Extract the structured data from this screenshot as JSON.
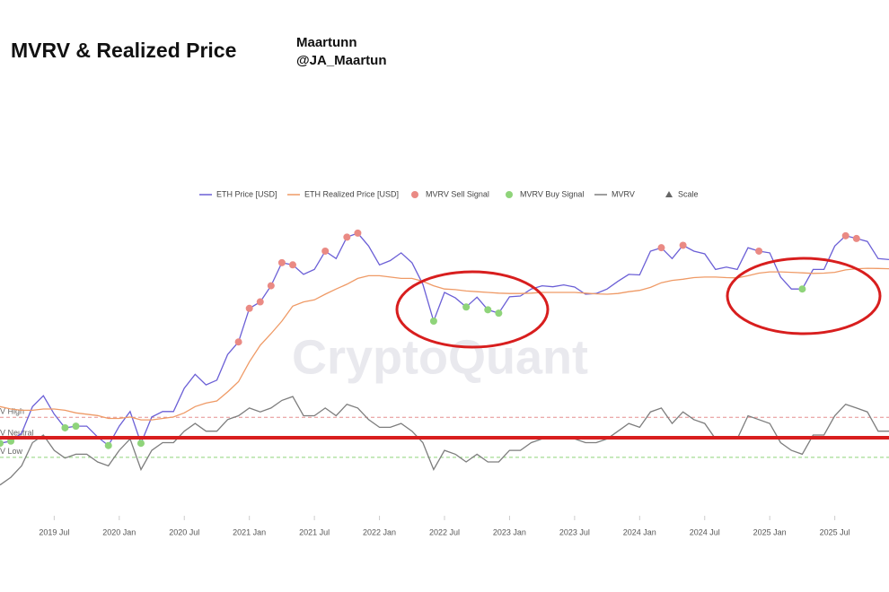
{
  "header": {
    "title": "MVRV & Realized Price",
    "author": "Maartunn",
    "handle": "@JA_Maartun"
  },
  "chart_data": {
    "type": "line",
    "watermark": "CryptoQuant",
    "scale_label": "Scale",
    "x": [
      "2019-02",
      "2019-03",
      "2019-04",
      "2019-05",
      "2019-06",
      "2019-07",
      "2019-08",
      "2019-09",
      "2019-10",
      "2019-11",
      "2019-12",
      "2020-01",
      "2020-02",
      "2020-03",
      "2020-04",
      "2020-05",
      "2020-06",
      "2020-07",
      "2020-08",
      "2020-09",
      "2020-10",
      "2020-11",
      "2020-12",
      "2021-01",
      "2021-02",
      "2021-03",
      "2021-04",
      "2021-05",
      "2021-06",
      "2021-07",
      "2021-08",
      "2021-09",
      "2021-10",
      "2021-11",
      "2021-12",
      "2022-01",
      "2022-02",
      "2022-03",
      "2022-04",
      "2022-05",
      "2022-06",
      "2022-07",
      "2022-08",
      "2022-09",
      "2022-10",
      "2022-11",
      "2022-12",
      "2023-01",
      "2023-02",
      "2023-03",
      "2023-04",
      "2023-05",
      "2023-06",
      "2023-07",
      "2023-08",
      "2023-09",
      "2023-10",
      "2023-11",
      "2023-12",
      "2024-01",
      "2024-02",
      "2024-03",
      "2024-04",
      "2024-05",
      "2024-06",
      "2024-07",
      "2024-08",
      "2024-09",
      "2024-10",
      "2024-11",
      "2024-12",
      "2025-01",
      "2025-02",
      "2025-03",
      "2025-04",
      "2025-05",
      "2025-06",
      "2025-07",
      "2025-08",
      "2025-09",
      "2025-10",
      "2025-11",
      "2025-12"
    ],
    "xlim": [
      "2019-02",
      "2025-12"
    ],
    "xticks": [
      {
        "value": "2019-07",
        "label": "2019 Jul"
      },
      {
        "value": "2020-01",
        "label": "2020 Jan"
      },
      {
        "value": "2020-07",
        "label": "2020 Jul"
      },
      {
        "value": "2021-01",
        "label": "2021 Jan"
      },
      {
        "value": "2021-07",
        "label": "2021 Jul"
      },
      {
        "value": "2022-01",
        "label": "2022 Jan"
      },
      {
        "value": "2022-07",
        "label": "2022 Jul"
      },
      {
        "value": "2023-01",
        "label": "2023 Jan"
      },
      {
        "value": "2023-07",
        "label": "2023 Jul"
      },
      {
        "value": "2024-01",
        "label": "2024 Jan"
      },
      {
        "value": "2024-07",
        "label": "2024 Jul"
      },
      {
        "value": "2025-01",
        "label": "2025 Jan"
      },
      {
        "value": "2025-07",
        "label": "2025 Jul"
      }
    ],
    "ylim": [
      40,
      7000
    ],
    "log_scale": true,
    "y2lim": [
      0,
      4
    ],
    "thresholds": [
      {
        "label": "V High",
        "value": 1.28,
        "color": "#e58f8f",
        "dashed": true
      },
      {
        "label": "V Neutral",
        "value": 1.0,
        "color": "#e8a0a0",
        "dashed": true
      },
      {
        "label": "V Low",
        "value": 0.76,
        "color": "#8fd47a",
        "dashed": true
      }
    ],
    "series": [
      {
        "name": "ETH Price [USD]",
        "color": "#6b5fd6",
        "kind": "line",
        "axis": "y",
        "values": [
          135,
          140,
          160,
          250,
          300,
          220,
          175,
          180,
          180,
          150,
          130,
          180,
          230,
          135,
          210,
          230,
          230,
          340,
          430,
          360,
          390,
          600,
          740,
          1300,
          1450,
          1900,
          2800,
          2700,
          2300,
          2500,
          3400,
          3000,
          4300,
          4600,
          3700,
          2700,
          2900,
          3300,
          2800,
          1950,
          1050,
          1700,
          1550,
          1330,
          1570,
          1270,
          1200,
          1580,
          1600,
          1800,
          1900,
          1870,
          1930,
          1860,
          1650,
          1670,
          1800,
          2050,
          2300,
          2280,
          3400,
          3600,
          3000,
          3750,
          3400,
          3250,
          2500,
          2600,
          2500,
          3600,
          3400,
          3300,
          2200,
          1800,
          1800,
          2500,
          2500,
          3700,
          4400,
          4200,
          4000,
          3000,
          2950
        ]
      },
      {
        "name": "ETH Realized Price [USD]",
        "color": "#ef9a66",
        "kind": "line",
        "axis": "y",
        "values": [
          250,
          240,
          235,
          235,
          240,
          240,
          235,
          225,
          220,
          215,
          205,
          205,
          210,
          200,
          200,
          205,
          210,
          225,
          250,
          265,
          275,
          320,
          380,
          530,
          700,
          850,
          1050,
          1350,
          1450,
          1500,
          1650,
          1800,
          1950,
          2150,
          2250,
          2250,
          2200,
          2150,
          2150,
          2050,
          1900,
          1800,
          1780,
          1740,
          1720,
          1700,
          1680,
          1670,
          1670,
          1680,
          1700,
          1700,
          1700,
          1700,
          1680,
          1660,
          1650,
          1670,
          1720,
          1760,
          1850,
          2000,
          2080,
          2120,
          2180,
          2200,
          2200,
          2180,
          2170,
          2250,
          2350,
          2400,
          2400,
          2380,
          2360,
          2340,
          2350,
          2380,
          2480,
          2530,
          2550,
          2540,
          2530
        ]
      },
      {
        "name": "MVRV Sell Signal",
        "color": "#ea8a84",
        "kind": "points",
        "axis": "y",
        "values": [
          null,
          null,
          null,
          null,
          null,
          null,
          null,
          null,
          null,
          null,
          null,
          null,
          null,
          null,
          null,
          null,
          null,
          null,
          null,
          null,
          null,
          null,
          740,
          1300,
          1450,
          1900,
          2800,
          2700,
          null,
          null,
          3400,
          null,
          4300,
          4600,
          null,
          null,
          null,
          null,
          null,
          null,
          null,
          null,
          null,
          null,
          null,
          null,
          null,
          null,
          null,
          null,
          null,
          null,
          null,
          null,
          null,
          null,
          null,
          null,
          null,
          null,
          null,
          3600,
          null,
          3750,
          null,
          null,
          null,
          null,
          null,
          null,
          3400,
          null,
          null,
          null,
          null,
          null,
          null,
          null,
          4400,
          4200,
          null,
          null,
          null
        ]
      },
      {
        "name": "MVRV Buy Signal",
        "color": "#8fd47a",
        "kind": "points",
        "axis": "y",
        "values": [
          135,
          140,
          null,
          null,
          null,
          null,
          175,
          180,
          null,
          null,
          130,
          null,
          null,
          135,
          null,
          null,
          null,
          null,
          null,
          null,
          null,
          null,
          null,
          null,
          null,
          null,
          null,
          null,
          null,
          null,
          null,
          null,
          null,
          null,
          null,
          null,
          null,
          null,
          null,
          null,
          1050,
          null,
          null,
          1330,
          null,
          1270,
          1200,
          null,
          null,
          null,
          null,
          null,
          null,
          null,
          null,
          null,
          null,
          null,
          null,
          null,
          null,
          null,
          null,
          null,
          null,
          null,
          null,
          null,
          null,
          null,
          null,
          null,
          null,
          null,
          1800,
          null,
          null,
          null,
          null,
          null,
          null,
          null,
          null
        ]
      },
      {
        "name": "MVRV",
        "color": "#7d7d7d",
        "kind": "line",
        "axis": "y2",
        "values": [
          0.4,
          0.5,
          0.65,
          0.95,
          1.05,
          0.85,
          0.75,
          0.8,
          0.8,
          0.7,
          0.65,
          0.85,
          1.0,
          0.6,
          0.85,
          0.95,
          0.95,
          1.1,
          1.2,
          1.1,
          1.1,
          1.25,
          1.3,
          1.4,
          1.35,
          1.4,
          1.5,
          1.55,
          1.3,
          1.3,
          1.4,
          1.3,
          1.45,
          1.4,
          1.25,
          1.15,
          1.15,
          1.2,
          1.1,
          0.95,
          0.6,
          0.85,
          0.8,
          0.7,
          0.8,
          0.7,
          0.7,
          0.85,
          0.85,
          0.95,
          1.0,
          1.0,
          1.0,
          1.0,
          0.95,
          0.95,
          1.0,
          1.1,
          1.2,
          1.15,
          1.35,
          1.4,
          1.2,
          1.35,
          1.25,
          1.2,
          1.0,
          1.0,
          1.0,
          1.3,
          1.25,
          1.2,
          0.95,
          0.85,
          0.8,
          1.05,
          1.05,
          1.3,
          1.45,
          1.4,
          1.35,
          1.1,
          1.1
        ]
      }
    ]
  }
}
